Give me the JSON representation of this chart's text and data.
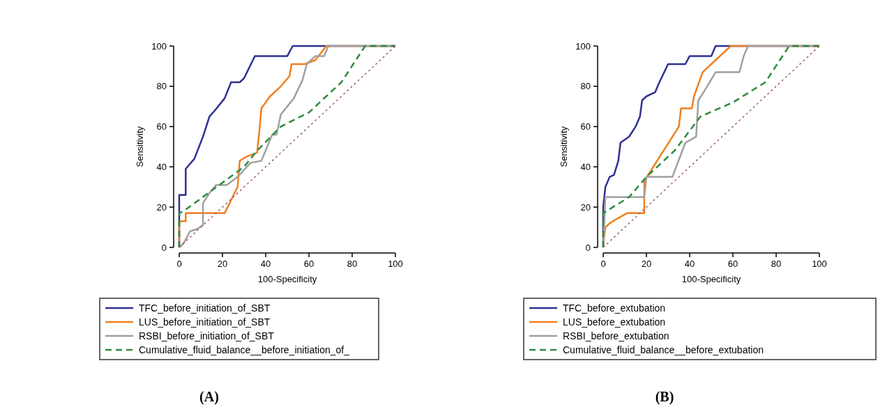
{
  "chart_data": [
    {
      "type": "line",
      "title": "(A)",
      "xlabel": "100-Specificity",
      "ylabel": "Sensitivity",
      "xlim": [
        0,
        100
      ],
      "ylim": [
        0,
        100
      ],
      "xticks": [
        0,
        20,
        40,
        60,
        80,
        100
      ],
      "yticks": [
        0,
        20,
        40,
        60,
        80,
        100
      ],
      "grid": false,
      "legend": "bottom",
      "marker": "none",
      "series": [
        {
          "name": "TFC_before_initiation_of_SBT",
          "color": "#2e3192",
          "line_style": "solid",
          "x": [
            0,
            0,
            3,
            3,
            7,
            11,
            14,
            16.5,
            21,
            24,
            28,
            30,
            35,
            50,
            52.5,
            100
          ],
          "values": [
            0,
            26,
            26,
            39,
            44,
            55,
            65,
            68,
            74,
            82,
            82,
            84,
            95,
            95,
            100,
            100
          ]
        },
        {
          "name": "LUS_before_initiation_of_SBT",
          "color": "#f07f1f",
          "line_style": "solid",
          "x": [
            0,
            0,
            3,
            3,
            21,
            27,
            28,
            31,
            36,
            37,
            38,
            42,
            47,
            51,
            52,
            58,
            63,
            68,
            100
          ],
          "values": [
            0,
            13,
            13,
            17,
            17,
            30,
            43,
            45,
            47,
            57,
            69,
            75,
            80,
            85,
            91,
            91,
            93,
            100,
            100
          ]
        },
        {
          "name": "RSBI_before_initiation_of_SBT",
          "color": "#a0a0a0",
          "line_style": "solid",
          "x": [
            0,
            2,
            5,
            8,
            11,
            11,
            14,
            17,
            22,
            27,
            33,
            38,
            43,
            45,
            47,
            53,
            57,
            59,
            63,
            67,
            69,
            100
          ],
          "values": [
            0,
            2,
            8,
            9,
            11,
            22,
            27,
            31,
            31,
            35,
            42,
            43,
            56,
            56,
            66,
            74,
            83,
            91,
            95,
            95,
            100,
            100
          ]
        },
        {
          "name": "Cumulative_fluid_balance__before_initiation_of_",
          "color": "#2e8b3e",
          "line_style": "dashed",
          "x": [
            0,
            0,
            2,
            30,
            36,
            47,
            60,
            75,
            86,
            100
          ],
          "values": [
            0,
            17,
            18,
            40,
            48,
            60,
            67,
            82,
            100,
            100
          ]
        },
        {
          "color": "#a0606b",
          "line_style": "dotted",
          "x": [
            0,
            100
          ],
          "values": [
            0,
            100
          ]
        }
      ]
    },
    {
      "type": "line",
      "title": "(B)",
      "xlabel": "100-Specificity",
      "ylabel": "Sensitivity",
      "xlim": [
        0,
        100
      ],
      "ylim": [
        0,
        100
      ],
      "xticks": [
        0,
        20,
        40,
        60,
        80,
        100
      ],
      "yticks": [
        0,
        20,
        40,
        60,
        80,
        100
      ],
      "grid": false,
      "legend": "bottom",
      "marker": "none",
      "series": [
        {
          "name": "TFC_before_extubation",
          "color": "#2e3192",
          "line_style": "solid",
          "x": [
            0,
            0,
            1,
            3,
            5,
            7,
            8,
            12,
            15,
            17,
            18,
            20,
            24,
            26,
            30,
            38,
            40,
            50,
            52,
            100
          ],
          "values": [
            0,
            20,
            30,
            35,
            36,
            43,
            52,
            55,
            60,
            65,
            73,
            75,
            77,
            82,
            91,
            91,
            95,
            95,
            100,
            100
          ]
        },
        {
          "name": "LUS_before_extubation",
          "color": "#f07f1f",
          "line_style": "solid",
          "x": [
            0,
            1,
            3,
            6,
            11,
            19,
            19,
            35,
            36,
            41,
            42,
            46,
            50,
            59,
            100
          ],
          "values": [
            2,
            10,
            12,
            14,
            17,
            17,
            33,
            60,
            69,
            69,
            75,
            87,
            91,
            100,
            100
          ]
        },
        {
          "name": "RSBI_before_extubation",
          "color": "#a0a0a0",
          "line_style": "solid",
          "x": [
            0,
            1,
            19,
            20,
            32,
            38,
            43,
            44,
            47,
            52,
            63,
            65,
            67,
            100
          ],
          "values": [
            0,
            25,
            25,
            35,
            35,
            52,
            55,
            73,
            78,
            87,
            87,
            95,
            100,
            100
          ]
        },
        {
          "name": "Cumulative_fluid_balance__before_extubation",
          "color": "#2e8b3e",
          "line_style": "dashed",
          "x": [
            0,
            0,
            12,
            20,
            33,
            45,
            60,
            75,
            86,
            100
          ],
          "values": [
            0,
            17,
            25,
            35,
            48,
            65,
            72,
            82,
            100,
            100
          ]
        },
        {
          "color": "#a0606b",
          "line_style": "dotted",
          "x": [
            0,
            100
          ],
          "values": [
            0,
            100
          ]
        }
      ]
    }
  ]
}
